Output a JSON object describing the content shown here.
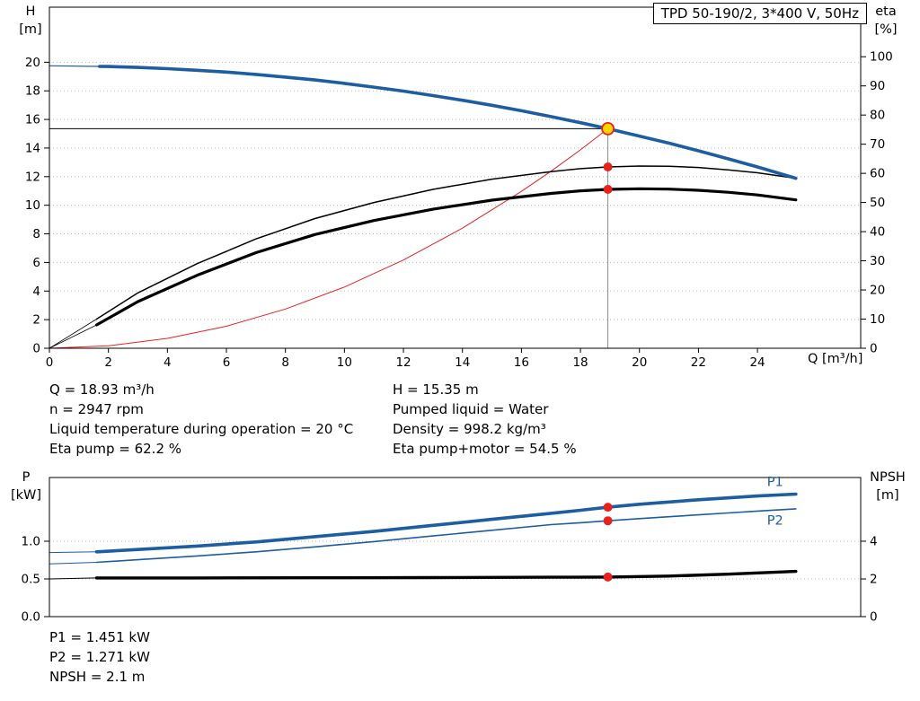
{
  "title_box": "TPD 50-190/2, 3*400 V, 50Hz",
  "results_top": {
    "left": [
      "Q = 18.93 m³/h",
      "n = 2947 rpm",
      "Liquid temperature during operation = 20 °C",
      "Eta pump = 62.2 %"
    ],
    "right": [
      "H = 15.35 m",
      "Pumped liquid = Water",
      "Density = 998.2 kg/m³",
      "Eta pump+motor = 54.5 %"
    ]
  },
  "results_bottom": [
    "P1 = 1.451 kW",
    "P2 = 1.271 kW",
    "NPSH = 2.1 m"
  ],
  "colors": {
    "curve_blue": "#1d5da2",
    "curve_black": "#000000",
    "curve_red": "#e8211d",
    "duty_marker_fill": "#ffd400",
    "duty_marker_ring": "#e8211d",
    "grid": "#bbbbbb",
    "ref_gray": "#8c8c8c"
  },
  "chart_data": [
    {
      "type": "line",
      "grid_color": "#bbbbbb",
      "left_axis": {
        "name": "H",
        "unit": "[m]",
        "min": 0,
        "max": 23.85,
        "ticks": [
          [
            0,
            "0"
          ],
          [
            2,
            "2"
          ],
          [
            4,
            "4"
          ],
          [
            6,
            "6"
          ],
          [
            8,
            "8"
          ],
          [
            10,
            "10"
          ],
          [
            12,
            "12"
          ],
          [
            14,
            "14"
          ],
          [
            16,
            "16"
          ],
          [
            18,
            "18"
          ],
          [
            20,
            "20"
          ]
        ]
      },
      "right_axis": {
        "name": "eta",
        "unit": "[%]",
        "min": 0,
        "max": 117,
        "ticks": [
          [
            0,
            "0"
          ],
          [
            10,
            "10"
          ],
          [
            20,
            "20"
          ],
          [
            30,
            "30"
          ],
          [
            40,
            "40"
          ],
          [
            50,
            "50"
          ],
          [
            60,
            "60"
          ],
          [
            70,
            "70"
          ],
          [
            80,
            "80"
          ],
          [
            90,
            "90"
          ],
          [
            100,
            "100"
          ]
        ]
      },
      "x_axis": {
        "label": "Q [m³/h]",
        "min": 0,
        "max": 27.5,
        "ticks": [
          [
            0,
            "0"
          ],
          [
            2,
            "2"
          ],
          [
            4,
            "4"
          ],
          [
            6,
            "6"
          ],
          [
            8,
            "8"
          ],
          [
            10,
            "10"
          ],
          [
            12,
            "12"
          ],
          [
            14,
            "14"
          ],
          [
            16,
            "16"
          ],
          [
            18,
            "18"
          ],
          [
            20,
            "20"
          ],
          [
            22,
            "22"
          ],
          [
            24,
            "24"
          ]
        ]
      },
      "ref_lines": [
        {
          "type": "v",
          "x": 18.93,
          "to": 15.35,
          "axis": "left",
          "color": "#8c8c8c",
          "name": "duty-flow-refline"
        },
        {
          "type": "h",
          "y": 15.35,
          "to": 18.93,
          "color": "#000000",
          "name": "duty-head-refline"
        }
      ],
      "series": [
        {
          "name": "system-curve",
          "axis": "left",
          "color": "#e8211d",
          "width": 1,
          "points": [
            [
              0,
              0
            ],
            [
              2,
              0.17
            ],
            [
              4,
              0.69
            ],
            [
              6,
              1.54
            ],
            [
              8,
              2.74
            ],
            [
              10,
              4.28
            ],
            [
              12,
              6.17
            ],
            [
              14,
              8.4
            ],
            [
              16,
              10.97
            ],
            [
              17,
              12.38
            ],
            [
              18,
              13.88
            ],
            [
              18.93,
              15.35
            ]
          ]
        },
        {
          "name": "eta-pump-curve-lead",
          "axis": "right",
          "color": "#000000",
          "width": 0.8,
          "points": [
            [
              0,
              0
            ],
            [
              1.6,
              10
            ]
          ]
        },
        {
          "name": "eta-pump-motor-curve-lead",
          "axis": "right",
          "color": "#000000",
          "width": 0.8,
          "points": [
            [
              0,
              0
            ],
            [
              1.6,
              8
            ]
          ]
        },
        {
          "name": "eta-pump-curve",
          "axis": "right",
          "color": "#000000",
          "width": 1.5,
          "points": [
            [
              1.6,
              10
            ],
            [
              3,
              19
            ],
            [
              5,
              29
            ],
            [
              7,
              37.5
            ],
            [
              9,
              44.5
            ],
            [
              11,
              50
            ],
            [
              13,
              54.5
            ],
            [
              15,
              58
            ],
            [
              17,
              60.6
            ],
            [
              18,
              61.6
            ],
            [
              18.93,
              62.2
            ],
            [
              20,
              62.5
            ],
            [
              21,
              62.4
            ],
            [
              22,
              62
            ],
            [
              23,
              61.2
            ],
            [
              24,
              60.2
            ],
            [
              25.3,
              58.3
            ]
          ]
        },
        {
          "name": "eta-pump-motor-curve",
          "axis": "right",
          "color": "#000000",
          "width": 3.2,
          "points": [
            [
              1.6,
              8
            ],
            [
              3,
              16
            ],
            [
              5,
              25
            ],
            [
              7,
              32.8
            ],
            [
              9,
              39
            ],
            [
              11,
              43.8
            ],
            [
              13,
              47.7
            ],
            [
              15,
              50.8
            ],
            [
              17,
              53.1
            ],
            [
              18,
              54
            ],
            [
              18.93,
              54.5
            ],
            [
              20,
              54.7
            ],
            [
              21,
              54.6
            ],
            [
              22,
              54.2
            ],
            [
              23,
              53.5
            ],
            [
              24,
              52.6
            ],
            [
              25.3,
              50.9
            ]
          ]
        },
        {
          "name": "pump-curve-lead",
          "axis": "left",
          "color": "#1d5da2",
          "width": 1.2,
          "points": [
            [
              0,
              19.75
            ],
            [
              1.7,
              19.71
            ]
          ]
        },
        {
          "name": "pump-curve",
          "axis": "left",
          "color": "#1d5da2",
          "width": 3.6,
          "points": [
            [
              1.7,
              19.71
            ],
            [
              2,
              19.7
            ],
            [
              3,
              19.64
            ],
            [
              4,
              19.55
            ],
            [
              5,
              19.44
            ],
            [
              6,
              19.31
            ],
            [
              7,
              19.15
            ],
            [
              8,
              18.96
            ],
            [
              9,
              18.76
            ],
            [
              10,
              18.52
            ],
            [
              11,
              18.26
            ],
            [
              12,
              17.98
            ],
            [
              13,
              17.67
            ],
            [
              14,
              17.34
            ],
            [
              15,
              16.99
            ],
            [
              16,
              16.61
            ],
            [
              17,
              16.2
            ],
            [
              18,
              15.77
            ],
            [
              18.93,
              15.35
            ],
            [
              20,
              14.84
            ],
            [
              21,
              14.34
            ],
            [
              22,
              13.81
            ],
            [
              23,
              13.25
            ],
            [
              24,
              12.68
            ],
            [
              25.3,
              11.89
            ]
          ]
        }
      ],
      "markers": [
        {
          "style": "red",
          "x": 18.93,
          "y": 62.2,
          "axis": "right",
          "fill": "#e8211d"
        },
        {
          "style": "red",
          "x": 18.93,
          "y": 54.5,
          "axis": "right",
          "fill": "#e8211d"
        },
        {
          "style": "duty",
          "x": 18.93,
          "y": 15.35,
          "axis": "left",
          "fill": "#ffd400",
          "stroke": "#e8211d"
        }
      ]
    },
    {
      "type": "line",
      "grid_color": "#bbbbbb",
      "left_axis": {
        "name": "P",
        "unit": "[kW]",
        "min": 0,
        "max": 1.845,
        "ticks": [
          [
            0,
            "0.0"
          ],
          [
            0.5,
            "0.5"
          ],
          [
            1,
            "1.0"
          ]
        ]
      },
      "right_axis": {
        "name": "NPSH",
        "unit": "[m]",
        "min": 0,
        "max": 7.38,
        "ticks": [
          [
            0,
            "0"
          ],
          [
            2,
            "2"
          ],
          [
            4,
            "4"
          ]
        ]
      },
      "x_axis": {
        "label": "",
        "min": 0,
        "max": 27.5,
        "ticks": []
      },
      "ref_lines": [],
      "series": [
        {
          "name": "p2-curve-lead",
          "axis": "left",
          "color": "#1d5da2",
          "width": 1,
          "points": [
            [
              0,
              0.7
            ],
            [
              1.6,
              0.72
            ]
          ]
        },
        {
          "name": "p2-curve",
          "axis": "left",
          "color": "#1d5da2",
          "width": 1.6,
          "points": [
            [
              1.6,
              0.72
            ],
            [
              3,
              0.755
            ],
            [
              5,
              0.805
            ],
            [
              7,
              0.86
            ],
            [
              9,
              0.925
            ],
            [
              11,
              0.995
            ],
            [
              13,
              1.07
            ],
            [
              15,
              1.145
            ],
            [
              17,
              1.22
            ],
            [
              18,
              1.245
            ],
            [
              18.93,
              1.271
            ],
            [
              20,
              1.3
            ],
            [
              21,
              1.325
            ],
            [
              22,
              1.35
            ],
            [
              23,
              1.375
            ],
            [
              24,
              1.4
            ],
            [
              25.3,
              1.43
            ]
          ]
        },
        {
          "name": "p1-curve-lead",
          "axis": "left",
          "color": "#1d5da2",
          "width": 1,
          "points": [
            [
              0,
              0.85
            ],
            [
              1.6,
              0.86
            ]
          ]
        },
        {
          "name": "p1-curve",
          "axis": "left",
          "color": "#1d5da2",
          "width": 3.6,
          "points": [
            [
              1.6,
              0.86
            ],
            [
              3,
              0.89
            ],
            [
              5,
              0.935
            ],
            [
              7,
              0.99
            ],
            [
              9,
              1.06
            ],
            [
              11,
              1.13
            ],
            [
              13,
              1.21
            ],
            [
              15,
              1.29
            ],
            [
              17,
              1.37
            ],
            [
              18,
              1.41
            ],
            [
              18.93,
              1.451
            ],
            [
              20,
              1.49
            ],
            [
              21,
              1.52
            ],
            [
              22,
              1.55
            ],
            [
              23,
              1.575
            ],
            [
              24,
              1.6
            ],
            [
              25.3,
              1.625
            ]
          ]
        },
        {
          "name": "npsh-curve-lead",
          "axis": "right",
          "color": "#000000",
          "width": 1,
          "points": [
            [
              0,
              2
            ],
            [
              1.6,
              2.05
            ]
          ]
        },
        {
          "name": "npsh-curve",
          "axis": "right",
          "color": "#000000",
          "width": 3.4,
          "points": [
            [
              1.6,
              2.05
            ],
            [
              5,
              2.05
            ],
            [
              9,
              2.06
            ],
            [
              13,
              2.07
            ],
            [
              17,
              2.09
            ],
            [
              18.93,
              2.1
            ],
            [
              21,
              2.15
            ],
            [
              23,
              2.25
            ],
            [
              25.3,
              2.4
            ]
          ]
        }
      ],
      "labels": [
        {
          "text": "P1",
          "x": 24.6,
          "y": 1.73,
          "axis": "left",
          "color": "#1d5da2"
        },
        {
          "text": "P2",
          "x": 24.6,
          "y": 1.22,
          "axis": "left",
          "color": "#1d5da2"
        }
      ],
      "markers": [
        {
          "style": "red",
          "x": 18.93,
          "y": 1.451,
          "axis": "left",
          "fill": "#e8211d"
        },
        {
          "style": "red",
          "x": 18.93,
          "y": 1.271,
          "axis": "left",
          "fill": "#e8211d"
        },
        {
          "style": "red",
          "x": 18.93,
          "y": 2.1,
          "axis": "right",
          "fill": "#e8211d"
        }
      ]
    }
  ]
}
